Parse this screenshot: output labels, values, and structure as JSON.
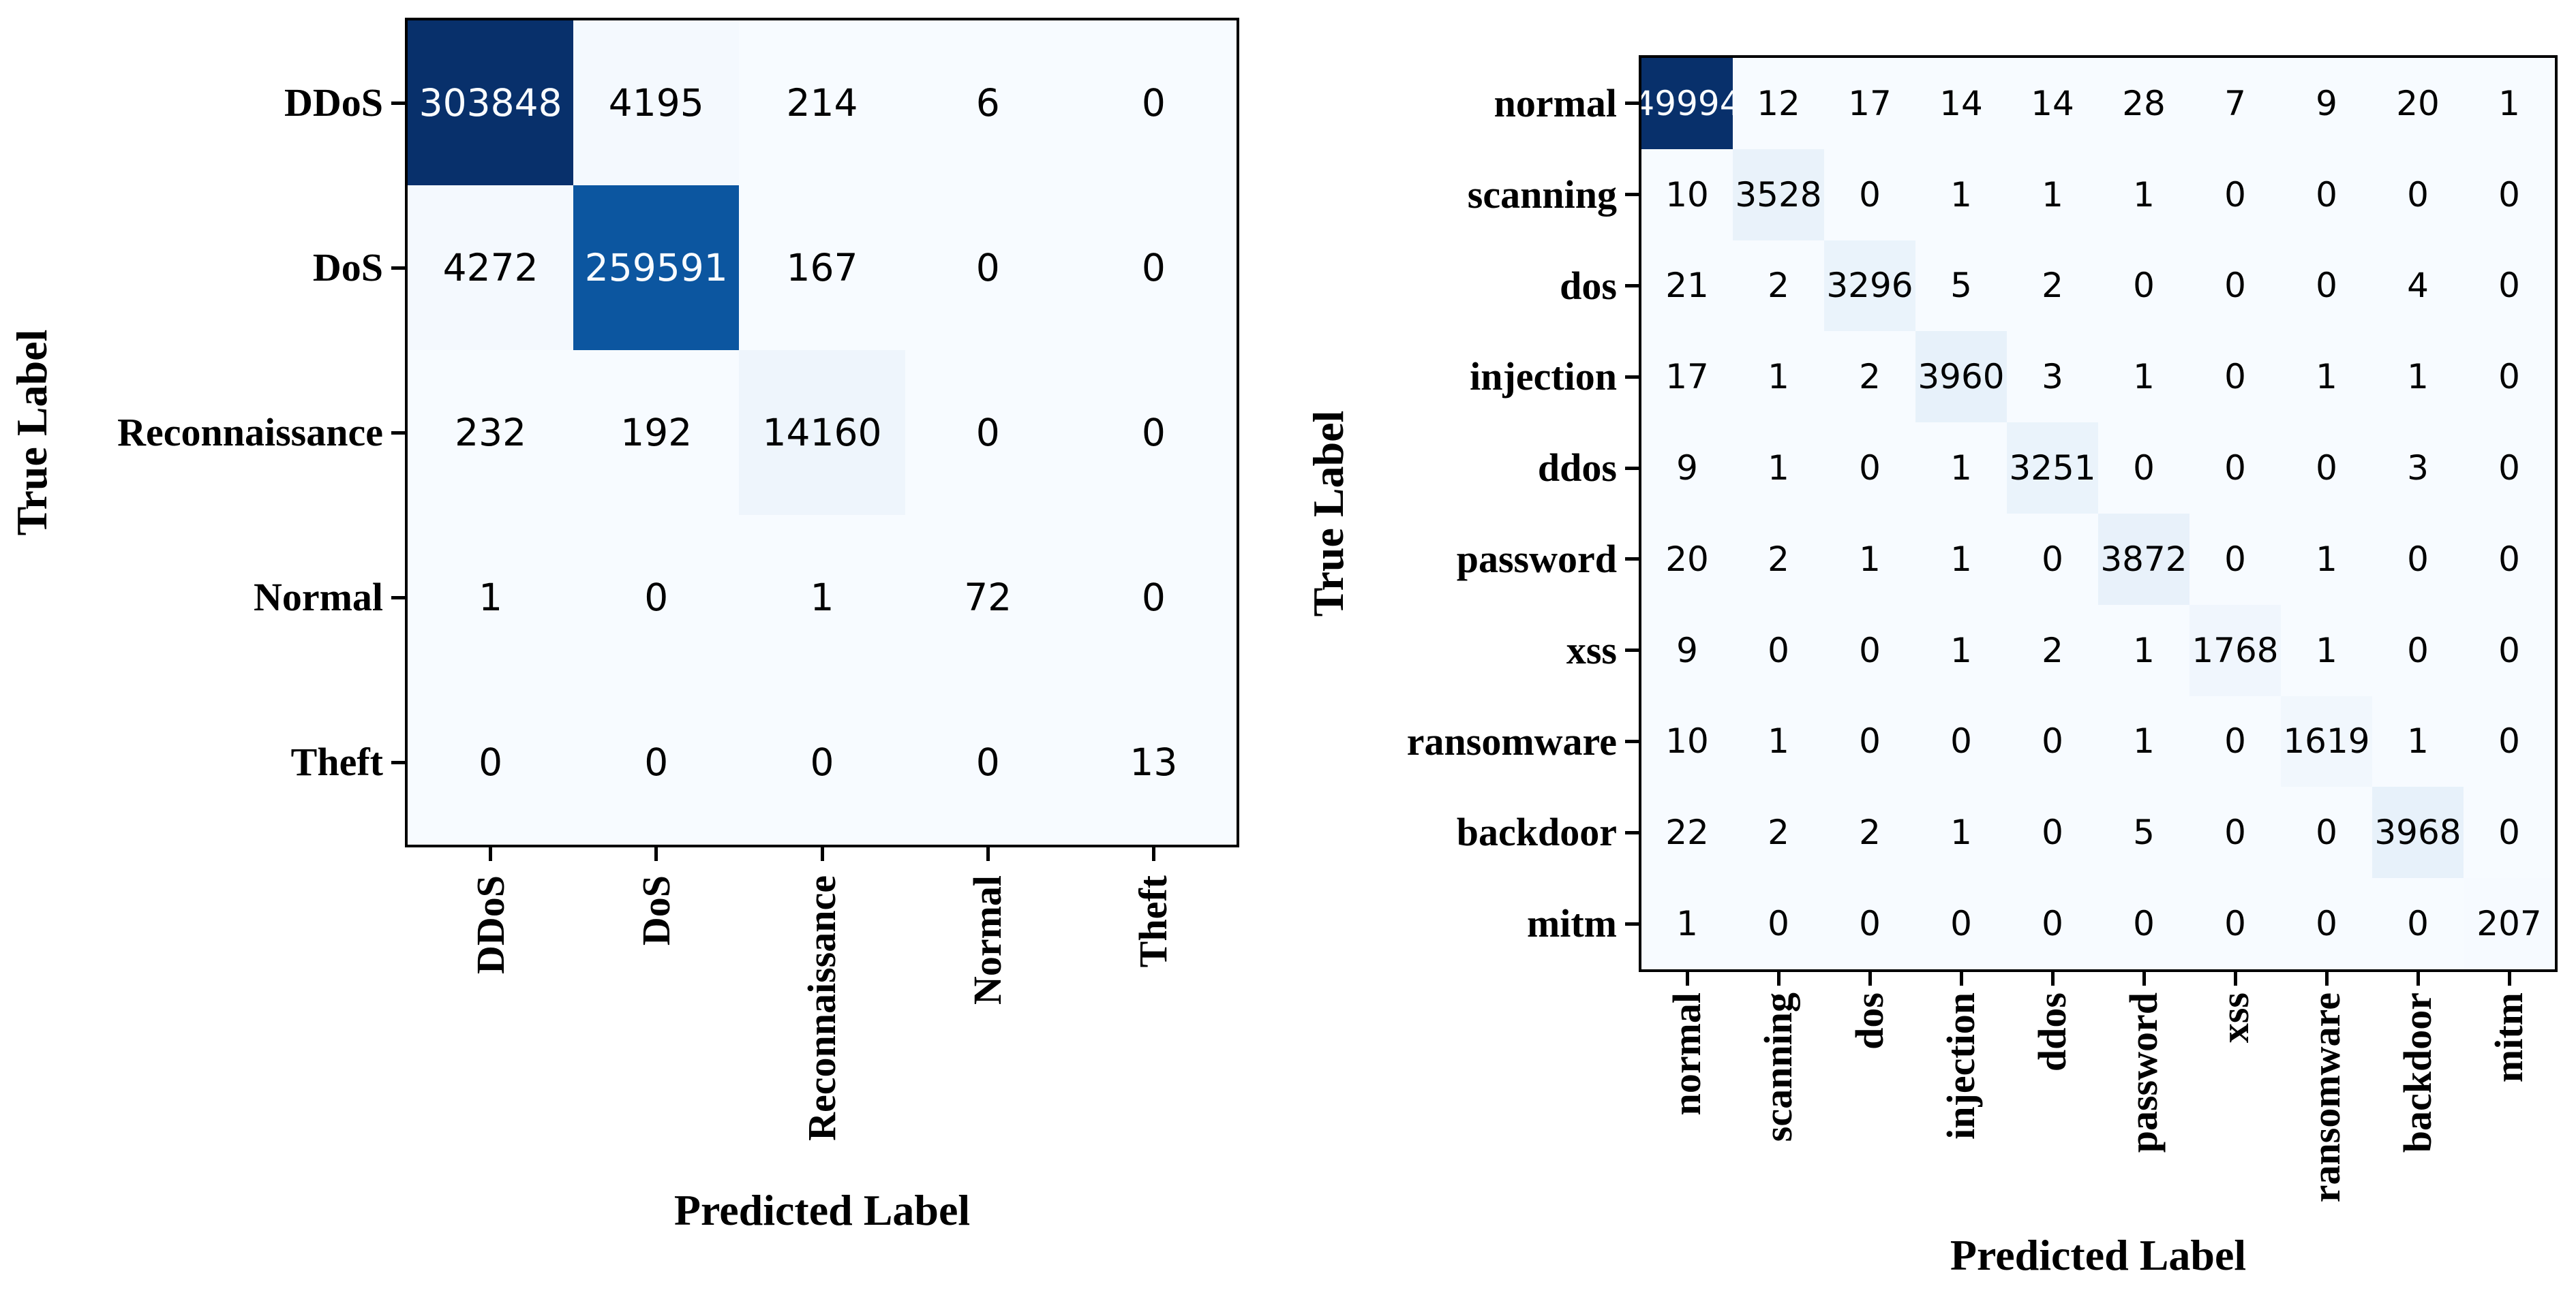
{
  "chart_data": [
    {
      "type": "heatmap",
      "name": "confusion-matrix-5-class",
      "title": "",
      "xlabel": "Predicted Label",
      "ylabel": "True Label",
      "x_tick_labels": [
        "DDoS",
        "DoS",
        "Reconnaissance",
        "Normal",
        "Theft"
      ],
      "y_tick_labels": [
        "DDoS",
        "DoS",
        "Reconnaissance",
        "Normal",
        "Theft"
      ],
      "matrix": [
        [
          303848,
          4195,
          214,
          6,
          0
        ],
        [
          4272,
          259591,
          167,
          0,
          0
        ],
        [
          232,
          192,
          14160,
          0,
          0
        ],
        [
          1,
          0,
          1,
          72,
          0
        ],
        [
          0,
          0,
          0,
          0,
          13
        ]
      ],
      "colormap": "Blues",
      "vmin": 0,
      "vmax": 303848,
      "legend": "none",
      "grid": false
    },
    {
      "type": "heatmap",
      "name": "confusion-matrix-10-class",
      "title": "",
      "xlabel": "Predicted Label",
      "ylabel": "True Label",
      "x_tick_labels": [
        "normal",
        "scanning",
        "dos",
        "injection",
        "ddos",
        "password",
        "xss",
        "ransomware",
        "backdoor",
        "mitm"
      ],
      "y_tick_labels": [
        "normal",
        "scanning",
        "dos",
        "injection",
        "ddos",
        "password",
        "xss",
        "ransomware",
        "backdoor",
        "mitm"
      ],
      "matrix": [
        [
          49994,
          12,
          17,
          14,
          14,
          28,
          7,
          9,
          20,
          1
        ],
        [
          10,
          3528,
          0,
          1,
          1,
          1,
          0,
          0,
          0,
          0
        ],
        [
          21,
          2,
          3296,
          5,
          2,
          0,
          0,
          0,
          4,
          0
        ],
        [
          17,
          1,
          2,
          3960,
          3,
          1,
          0,
          1,
          1,
          0
        ],
        [
          9,
          1,
          0,
          1,
          3251,
          0,
          0,
          0,
          3,
          0
        ],
        [
          20,
          2,
          1,
          1,
          0,
          3872,
          0,
          1,
          0,
          0
        ],
        [
          9,
          0,
          0,
          1,
          2,
          1,
          1768,
          1,
          0,
          0
        ],
        [
          10,
          1,
          0,
          0,
          0,
          1,
          0,
          1619,
          1,
          0
        ],
        [
          22,
          2,
          2,
          1,
          0,
          5,
          0,
          0,
          3968,
          0
        ],
        [
          1,
          0,
          0,
          0,
          0,
          0,
          0,
          0,
          0,
          207
        ]
      ],
      "colormap": "Blues",
      "vmin": 0,
      "vmax": 49994,
      "legend": "none",
      "grid": false
    }
  ],
  "colors": {
    "background": "#ffffff",
    "axis": "#000000",
    "cell_text_dark": "#000000",
    "cell_text_light": "#f9fcff",
    "colormap_low": "#f7fbff",
    "colormap_high": "#08306b",
    "blues_stops": [
      "#f7fbff",
      "#deebf7",
      "#c6dbef",
      "#9ecae1",
      "#6baed6",
      "#4292c6",
      "#2171b5",
      "#08519c",
      "#08306b"
    ]
  }
}
